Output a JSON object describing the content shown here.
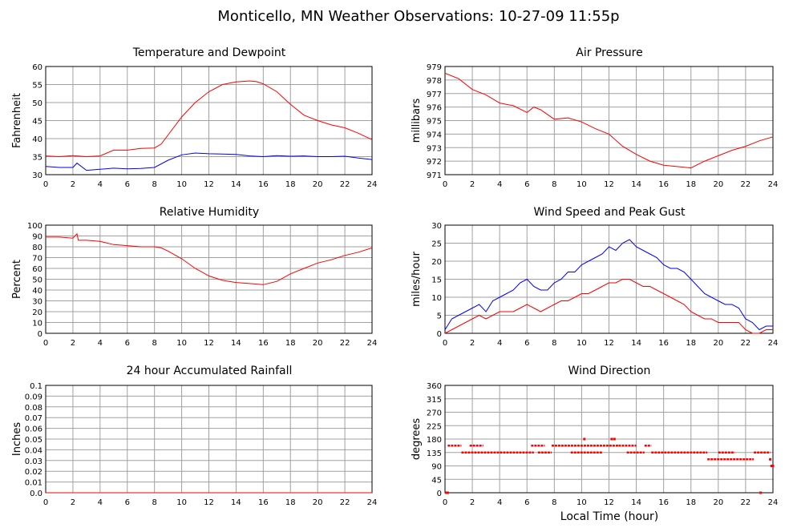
{
  "page_title": "Monticello, MN Weather Observations: 10-27-09 11:55p",
  "shared_xlabel": "Local Time (hour)",
  "x_ticks": [
    0,
    2,
    4,
    6,
    8,
    10,
    12,
    14,
    16,
    18,
    20,
    22,
    24
  ],
  "colors": {
    "primary": "#ff0000",
    "secondary": "#0000ff",
    "grid": "#a0a0a0"
  },
  "chart_data": [
    {
      "id": "temp",
      "type": "line",
      "title": "Temperature and Dewpoint",
      "ylabel": "Fahrenheit",
      "xlabel": "",
      "xlim": [
        0,
        24
      ],
      "ylim": [
        30,
        60
      ],
      "y_ticks": [
        "30",
        "35",
        "40",
        "45",
        "50",
        "55",
        "60"
      ],
      "series": [
        {
          "color": "#ff0000",
          "x": [
            0,
            1,
            2,
            3,
            4,
            5,
            6,
            7,
            8,
            8.5,
            9,
            10,
            11,
            12,
            13,
            14,
            15,
            15.5,
            16,
            17,
            18,
            19,
            20,
            21,
            22,
            23,
            24
          ],
          "values": [
            35.2,
            35.0,
            35.3,
            35.0,
            35.2,
            36.8,
            36.8,
            37.3,
            37.4,
            38.5,
            41.0,
            46.0,
            50.0,
            53.0,
            55.0,
            55.7,
            56.0,
            55.8,
            55.2,
            53.0,
            49.5,
            46.5,
            45.0,
            43.8,
            43.0,
            41.5,
            39.7
          ]
        },
        {
          "color": "#0000ff",
          "x": [
            0,
            1,
            2,
            2.3,
            3,
            4,
            5,
            6,
            7,
            8,
            9,
            10,
            11,
            12,
            13,
            14,
            15,
            16,
            17,
            18,
            19,
            20,
            21,
            22,
            23,
            24
          ],
          "values": [
            32.3,
            32.0,
            32.0,
            33.2,
            31.2,
            31.5,
            31.8,
            31.6,
            31.7,
            32.0,
            34.0,
            35.5,
            36.0,
            35.8,
            35.7,
            35.6,
            35.2,
            35.0,
            35.3,
            35.1,
            35.2,
            35.0,
            35.0,
            35.1,
            34.6,
            34.2
          ]
        }
      ]
    },
    {
      "id": "pressure",
      "type": "line",
      "title": "Air Pressure",
      "ylabel": "millibars",
      "xlabel": "",
      "xlim": [
        0,
        24
      ],
      "ylim": [
        971,
        979
      ],
      "y_ticks": [
        "971",
        "972",
        "973",
        "974",
        "975",
        "976",
        "977",
        "978",
        "979"
      ],
      "series": [
        {
          "color": "#ff0000",
          "x": [
            0,
            1,
            2,
            3,
            4,
            5,
            6,
            6.5,
            7,
            8,
            9,
            10,
            11,
            12,
            13,
            14,
            15,
            16,
            17,
            18,
            19,
            20,
            21,
            22,
            23,
            24
          ],
          "values": [
            978.5,
            978.1,
            977.3,
            976.9,
            976.3,
            976.1,
            975.6,
            976.0,
            975.8,
            975.1,
            975.2,
            974.9,
            974.4,
            974.0,
            973.1,
            972.5,
            972.0,
            971.7,
            971.6,
            971.5,
            972.0,
            972.4,
            972.8,
            973.1,
            973.5,
            973.8
          ]
        }
      ]
    },
    {
      "id": "humidity",
      "type": "line",
      "title": "Relative Humidity",
      "ylabel": "Percent",
      "xlabel": "",
      "xlim": [
        0,
        24
      ],
      "ylim": [
        0,
        100
      ],
      "y_ticks": [
        "0",
        "10",
        "20",
        "30",
        "40",
        "50",
        "60",
        "70",
        "80",
        "90",
        "100"
      ],
      "series": [
        {
          "color": "#ff0000",
          "x": [
            0,
            1,
            2,
            2.3,
            2.4,
            3,
            4,
            5,
            6,
            7,
            8,
            8.5,
            9,
            10,
            11,
            12,
            13,
            14,
            15,
            16,
            17,
            18,
            19,
            20,
            21,
            22,
            23,
            24
          ],
          "values": [
            89,
            89,
            88,
            92,
            86,
            86,
            85,
            82,
            81,
            80,
            80,
            79,
            76,
            69,
            60,
            53,
            49,
            47,
            46,
            45,
            48,
            55,
            60,
            65,
            68,
            72,
            75,
            79
          ]
        }
      ]
    },
    {
      "id": "wind",
      "type": "line",
      "title": "Wind Speed and Peak Gust",
      "ylabel": "miles/hour",
      "xlabel": "",
      "xlim": [
        0,
        24
      ],
      "ylim": [
        0,
        30
      ],
      "y_ticks": [
        "0",
        "5",
        "10",
        "15",
        "20",
        "25",
        "30"
      ],
      "series": [
        {
          "color": "#0000ff",
          "x": [
            0,
            0.5,
            1,
            1.5,
            2,
            2.5,
            3,
            3.5,
            4,
            4.5,
            5,
            5.5,
            6,
            6.5,
            7,
            7.5,
            8,
            8.5,
            9,
            9.5,
            10,
            10.5,
            11,
            11.5,
            12,
            12.5,
            13,
            13.5,
            14,
            14.5,
            15,
            15.5,
            16,
            16.5,
            17,
            17.5,
            18,
            18.5,
            19,
            19.5,
            20,
            20.5,
            21,
            21.5,
            22,
            22.5,
            23,
            23.5,
            24
          ],
          "values": [
            1,
            4,
            5,
            6,
            7,
            8,
            6,
            9,
            10,
            11,
            12,
            14,
            15,
            13,
            12,
            12,
            14,
            15,
            17,
            17,
            19,
            20,
            21,
            22,
            24,
            23,
            25,
            26,
            24,
            23,
            22,
            21,
            19,
            18,
            18,
            17,
            15,
            13,
            11,
            10,
            9,
            8,
            8,
            7,
            4,
            3,
            1,
            2,
            2
          ]
        },
        {
          "color": "#ff0000",
          "x": [
            0,
            0.5,
            1,
            1.5,
            2,
            2.5,
            3,
            3.5,
            4,
            4.5,
            5,
            5.5,
            6,
            6.5,
            7,
            7.5,
            8,
            8.5,
            9,
            9.5,
            10,
            10.5,
            11,
            11.5,
            12,
            12.5,
            13,
            13.5,
            14,
            14.5,
            15,
            15.5,
            16,
            16.5,
            17,
            17.5,
            18,
            18.5,
            19,
            19.5,
            20,
            20.5,
            21,
            21.5,
            22,
            22.5,
            23,
            23.5,
            24
          ],
          "values": [
            0,
            1,
            2,
            3,
            4,
            5,
            4,
            5,
            6,
            6,
            6,
            7,
            8,
            7,
            6,
            7,
            8,
            9,
            9,
            10,
            11,
            11,
            12,
            13,
            14,
            14,
            15,
            15,
            14,
            13,
            13,
            12,
            11,
            10,
            9,
            8,
            6,
            5,
            4,
            4,
            3,
            3,
            3,
            3,
            1,
            0,
            0,
            1,
            1
          ]
        }
      ]
    },
    {
      "id": "rain",
      "type": "line",
      "title": "24 hour Accumulated Rainfall",
      "ylabel": "Inches",
      "xlabel": "",
      "xlim": [
        0,
        24
      ],
      "ylim": [
        0,
        0.1
      ],
      "y_ticks": [
        "0.0",
        "0.01",
        "0.02",
        "0.03",
        "0.04",
        "0.05",
        "0.06",
        "0.07",
        "0.08",
        "0.09",
        "0.1"
      ],
      "series": [
        {
          "color": "#ff0000",
          "x": [
            0,
            24
          ],
          "values": [
            0,
            0
          ]
        }
      ]
    },
    {
      "id": "direction",
      "type": "scatter",
      "title": "Wind Direction",
      "ylabel": "degrees",
      "xlabel": "Local Time (hour)",
      "xlim": [
        0,
        24
      ],
      "ylim": [
        0,
        360
      ],
      "y_ticks": [
        "0",
        "45",
        "90",
        "135",
        "180",
        "225",
        "270",
        "315",
        "360"
      ],
      "segments": [
        {
          "color": "#ff0000",
          "x0": 0.2,
          "x1": 1.2,
          "y": 158
        },
        {
          "color": "#ff0000",
          "x0": 1.2,
          "x1": 6.5,
          "y": 135
        },
        {
          "color": "#ff0000",
          "x0": 1.8,
          "x1": 2.8,
          "y": 158
        },
        {
          "color": "#ff0000",
          "x0": 6.3,
          "x1": 7.3,
          "y": 158
        },
        {
          "color": "#ff0000",
          "x0": 6.8,
          "x1": 7.8,
          "y": 135
        },
        {
          "color": "#ff0000",
          "x0": 7.8,
          "x1": 12.7,
          "y": 158
        },
        {
          "color": "#ff0000",
          "x0": 9.2,
          "x1": 11.5,
          "y": 135
        },
        {
          "color": "#ff0000",
          "x0": 12.7,
          "x1": 14.0,
          "y": 158
        },
        {
          "color": "#ff0000",
          "x0": 13.3,
          "x1": 14.6,
          "y": 135
        },
        {
          "color": "#ff0000",
          "x0": 14.6,
          "x1": 15.1,
          "y": 158
        },
        {
          "color": "#ff0000",
          "x0": 15.1,
          "x1": 19.2,
          "y": 135
        },
        {
          "color": "#ff0000",
          "x0": 19.2,
          "x1": 22.6,
          "y": 112
        },
        {
          "color": "#ff0000",
          "x0": 20.0,
          "x1": 21.2,
          "y": 135
        },
        {
          "color": "#ff0000",
          "x0": 22.6,
          "x1": 23.8,
          "y": 135
        }
      ],
      "points": [
        {
          "x": 0.1,
          "y": 0
        },
        {
          "x": 0.2,
          "y": 0
        },
        {
          "x": 10.2,
          "y": 180
        },
        {
          "x": 12.2,
          "y": 180
        },
        {
          "x": 12.4,
          "y": 180
        },
        {
          "x": 23.1,
          "y": 0
        },
        {
          "x": 23.8,
          "y": 112
        },
        {
          "x": 23.9,
          "y": 90
        },
        {
          "x": 24.0,
          "y": 90
        }
      ]
    }
  ]
}
